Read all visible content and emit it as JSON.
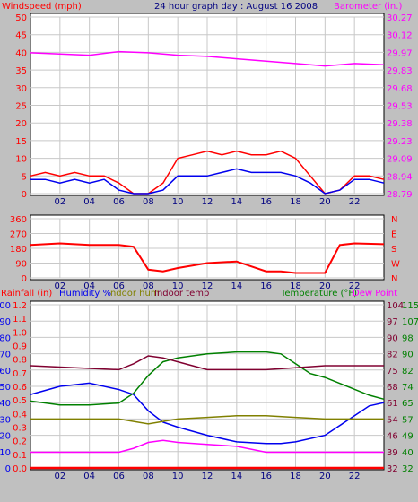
{
  "header": {
    "left_label": "Windspeed (mph)",
    "title": "24 hour graph day : August 16 2008",
    "right_label": "Barometer (in.)"
  },
  "bottom_header": {
    "rainfall": "Rainfall (in)",
    "humidity": "Humidity %",
    "indoor_hum": "Indoor hum",
    "indoor_temp": "Indoor temp",
    "temperature": "Temperature (°F)",
    "dew_point": "Dew Point"
  },
  "colors": {
    "wind_avg": "#0000ee",
    "wind_gust": "#ff0000",
    "barometer": "#ff00ff",
    "direction": "#ff0000",
    "temperature": "#008000",
    "dew_point": "#ff00ff",
    "humidity": "#0000ee",
    "indoor_hum": "#808000",
    "indoor_temp": "#800030",
    "rainfall": "#ff0000"
  },
  "chart_data": [
    {
      "type": "line",
      "name": "wind-barometer",
      "x_ticks": [
        "02",
        "04",
        "06",
        "08",
        "10",
        "12",
        "14",
        "16",
        "18",
        "20",
        "22"
      ],
      "left_axis": {
        "label": "Windspeed (mph)",
        "ticks": [
          "0",
          "5",
          "10",
          "15",
          "20",
          "25",
          "30",
          "35",
          "40",
          "45",
          "50"
        ],
        "ylim": [
          0,
          50
        ]
      },
      "right_axis": {
        "label": "Barometer (in.)",
        "ticks": [
          "28.79",
          "28.94",
          "29.09",
          "29.23",
          "29.38",
          "29.53",
          "29.68",
          "29.83",
          "29.97",
          "30.12",
          "30.27"
        ],
        "ylim": [
          28.79,
          30.27
        ]
      },
      "series": [
        {
          "key": "gust",
          "color": "#ff0000",
          "hours": [
            0,
            1,
            2,
            3,
            4,
            5,
            6,
            7,
            8,
            9,
            10,
            11,
            12,
            13,
            14,
            15,
            16,
            17,
            18,
            19,
            20,
            21,
            22,
            23,
            24
          ],
          "values": [
            5,
            6,
            5,
            6,
            5,
            5,
            3,
            0,
            0,
            3,
            10,
            11,
            12,
            11,
            12,
            11,
            11,
            12,
            10,
            5,
            0,
            1,
            5,
            5,
            4
          ]
        },
        {
          "key": "average",
          "color": "#0000ee",
          "hours": [
            0,
            1,
            2,
            3,
            4,
            5,
            6,
            7,
            8,
            9,
            10,
            11,
            12,
            13,
            14,
            15,
            16,
            17,
            18,
            19,
            20,
            21,
            22,
            23,
            24
          ],
          "values": [
            4,
            4,
            3,
            4,
            3,
            4,
            1,
            0,
            0,
            1,
            5,
            5,
            5,
            6,
            7,
            6,
            6,
            6,
            5,
            3,
            0,
            1,
            4,
            4,
            3
          ]
        },
        {
          "key": "barometer",
          "color": "#ff00ff",
          "axis": "right",
          "hours": [
            0,
            2,
            4,
            6,
            8,
            10,
            12,
            14,
            16,
            18,
            20,
            22,
            24
          ],
          "values": [
            29.97,
            29.96,
            29.95,
            29.98,
            29.97,
            29.95,
            29.94,
            29.92,
            29.9,
            29.88,
            29.86,
            29.88,
            29.87
          ]
        }
      ]
    },
    {
      "type": "line",
      "name": "wind-direction",
      "x_ticks": [
        "02",
        "04",
        "06",
        "08",
        "10",
        "12",
        "14",
        "16",
        "18",
        "20",
        "22"
      ],
      "left_axis": {
        "ticks": [
          "0",
          "90",
          "180",
          "270",
          "360"
        ],
        "ylim": [
          0,
          360
        ]
      },
      "right_axis": {
        "ticks": [
          "N",
          "W",
          "S",
          "E",
          "N"
        ]
      },
      "series": [
        {
          "key": "direction",
          "color": "#ff0000",
          "hours": [
            0,
            2,
            4,
            6,
            7,
            8,
            9,
            10,
            12,
            14,
            16,
            17,
            18,
            20,
            21,
            22,
            24
          ],
          "values": [
            200,
            210,
            200,
            200,
            190,
            50,
            40,
            60,
            90,
            100,
            40,
            40,
            30,
            30,
            200,
            210,
            205
          ]
        }
      ]
    },
    {
      "type": "line",
      "name": "temperature-humidity",
      "x_ticks": [
        "02",
        "04",
        "06",
        "08",
        "10",
        "12",
        "14",
        "16",
        "18",
        "20",
        "22"
      ],
      "rain_axis": {
        "label": "Rainfall (in)",
        "ticks": [
          "0.0",
          "0.1",
          "0.2",
          "0.3",
          "0.4",
          "0.5",
          "0.6",
          "0.7",
          "0.8",
          "0.9",
          "1.0",
          "1.1",
          "1.2"
        ]
      },
      "humidity_axis": {
        "label": "Humidity %",
        "ticks": [
          "0",
          "10",
          "20",
          "30",
          "40",
          "50",
          "60",
          "70",
          "80",
          "90",
          "100"
        ],
        "ylim": [
          0,
          100
        ]
      },
      "temp_axis_inner": {
        "ticks": [
          "32",
          "39",
          "46",
          "54",
          "61",
          "68",
          "75",
          "82",
          "90",
          "97",
          "104"
        ]
      },
      "temp_axis_outer": {
        "label": "Temperature (°F)",
        "ticks": [
          "32",
          "40",
          "49",
          "57",
          "65",
          "74",
          "82",
          "90",
          "98",
          "107",
          "115"
        ],
        "ylim": [
          32,
          115
        ]
      },
      "series": [
        {
          "key": "temperature",
          "color": "#008000",
          "axis": "temp",
          "hours": [
            0,
            2,
            4,
            6,
            7,
            8,
            9,
            10,
            12,
            14,
            16,
            17,
            18,
            19,
            20,
            21,
            22,
            23,
            24
          ],
          "values": [
            66,
            64,
            64,
            65,
            70,
            79,
            86,
            88,
            90,
            91,
            91,
            90,
            85,
            80,
            78,
            75,
            72,
            69,
            67
          ]
        },
        {
          "key": "dew_point",
          "color": "#ff00ff",
          "axis": "temp",
          "hours": [
            0,
            2,
            4,
            6,
            7,
            8,
            9,
            10,
            12,
            14,
            16,
            17,
            18,
            20,
            22,
            24
          ],
          "values": [
            40,
            40,
            40,
            40,
            42,
            45,
            46,
            45,
            44,
            43,
            40,
            40,
            40,
            40,
            40,
            40
          ]
        },
        {
          "key": "humidity",
          "color": "#0000ee",
          "axis": "humidity",
          "hours": [
            0,
            2,
            4,
            6,
            7,
            8,
            9,
            10,
            12,
            14,
            16,
            17,
            18,
            20,
            22,
            23,
            24
          ],
          "values": [
            45,
            50,
            52,
            48,
            45,
            35,
            28,
            25,
            20,
            16,
            15,
            15,
            16,
            20,
            32,
            38,
            40
          ]
        },
        {
          "key": "indoor_hum",
          "color": "#808000",
          "axis": "humidity",
          "hours": [
            0,
            4,
            6,
            8,
            10,
            12,
            14,
            16,
            18,
            20,
            22,
            24
          ],
          "values": [
            30,
            30,
            30,
            27,
            30,
            31,
            32,
            32,
            31,
            30,
            30,
            30
          ]
        },
        {
          "key": "indoor_temp",
          "color": "#800030",
          "axis": "temp",
          "hours": [
            0,
            3,
            6,
            7,
            8,
            9,
            10,
            11,
            12,
            14,
            16,
            18,
            20,
            22,
            24
          ],
          "values": [
            84,
            83,
            82,
            85,
            89,
            88,
            86,
            84,
            82,
            82,
            82,
            83,
            84,
            84,
            84
          ]
        },
        {
          "key": "rainfall",
          "color": "#ff0000",
          "axis": "rain",
          "hours": [
            0,
            24
          ],
          "values": [
            0,
            0
          ]
        }
      ]
    }
  ]
}
